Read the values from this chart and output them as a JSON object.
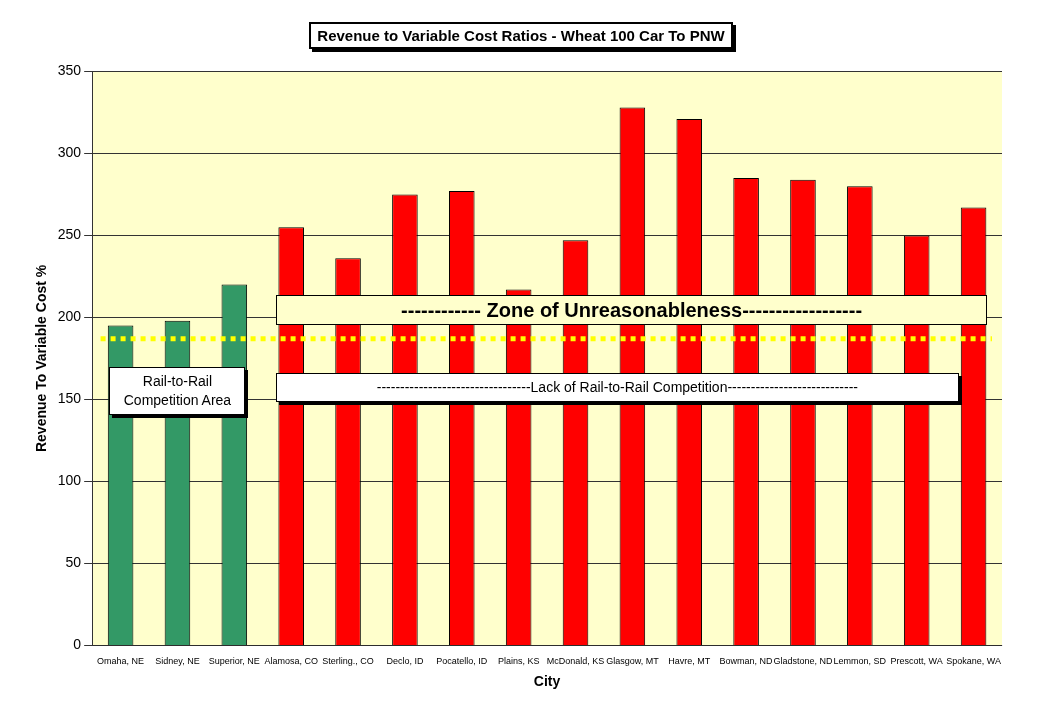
{
  "chart_data": {
    "type": "bar",
    "title": "Revenue to Variable Cost Ratios - Wheat 100 Car To PNW",
    "xlabel": "City",
    "ylabel": "Revenue To Variable Cost %",
    "categories": [
      "Omaha, NE",
      "Sidney, NE",
      "Superior, NE",
      "Alamosa, CO",
      "Sterling., CO",
      "Declo, ID",
      "Pocatello, ID",
      "Plains, KS",
      "McDonald, KS",
      "Glasgow, MT",
      "Havre, MT",
      "Bowman, ND",
      "Gladstone, ND",
      "Lemmon, SD",
      "Prescott, WA",
      "Spokane, WA"
    ],
    "values": [
      195,
      198,
      220,
      255,
      236,
      275,
      277,
      217,
      247,
      328,
      321,
      285,
      284,
      280,
      250,
      267
    ],
    "colors": [
      "#339966",
      "#339966",
      "#339966",
      "#ff0000",
      "#ff0000",
      "#ff0000",
      "#ff0000",
      "#ff0000",
      "#ff0000",
      "#ff0000",
      "#ff0000",
      "#ff0000",
      "#ff0000",
      "#ff0000",
      "#ff0000",
      "#ff0000"
    ],
    "ylim": [
      0,
      350
    ],
    "yticks": [
      0,
      50,
      100,
      150,
      200,
      250,
      300,
      350
    ],
    "grid": "y",
    "ref_lines": [
      {
        "axis": "y",
        "value": 187,
        "label": "------------ Zone of Unreasonableness------------------",
        "color": "#ffff00",
        "line_style": "dotted"
      }
    ],
    "annotations": [
      "Rail-to-Rail Competition Area",
      "---------------------------------Lack of Rail-to-Rail Competition----------------------------"
    ]
  }
}
